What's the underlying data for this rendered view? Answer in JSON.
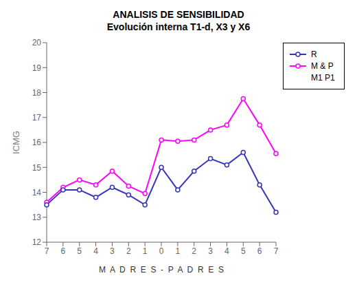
{
  "chart_data": {
    "type": "line",
    "title": "ANALISIS DE SENSIBILIDAD",
    "subtitle": "Evolución interna T1-d, X3 y X6",
    "xlabel": "M  A  D  R  E  S  -  P  A  D  R  E  S",
    "ylabel": "ICMG",
    "categories": [
      "7",
      "6",
      "5",
      "4",
      "3",
      "2",
      "1",
      "0",
      "1",
      "2",
      "3",
      "4",
      "5",
      "6",
      "7"
    ],
    "series": [
      {
        "name": "R",
        "color": "#3333bb",
        "marker": "o",
        "line_style": "solid",
        "values": [
          13.5,
          14.1,
          14.1,
          13.8,
          14.2,
          13.9,
          13.5,
          15.0,
          14.1,
          14.85,
          15.35,
          15.1,
          15.6,
          14.3,
          13.2
        ]
      },
      {
        "name": "M & P",
        "color": "#ff00ff",
        "marker": "o",
        "line_style": "solid",
        "values": [
          13.6,
          14.2,
          14.5,
          14.3,
          14.85,
          14.25,
          13.95,
          16.1,
          16.05,
          16.1,
          16.5,
          16.7,
          17.75,
          16.7,
          15.55
        ]
      },
      {
        "name": "M1 P1",
        "values": [
          null,
          null,
          null,
          null,
          null,
          null,
          null,
          null,
          null,
          null,
          null,
          null,
          null,
          null,
          null
        ]
      }
    ],
    "ylim": [
      12,
      20
    ],
    "yticks": [
      12,
      13,
      14,
      15,
      16,
      17,
      18,
      19,
      20
    ],
    "grid": false,
    "legend": "right"
  }
}
